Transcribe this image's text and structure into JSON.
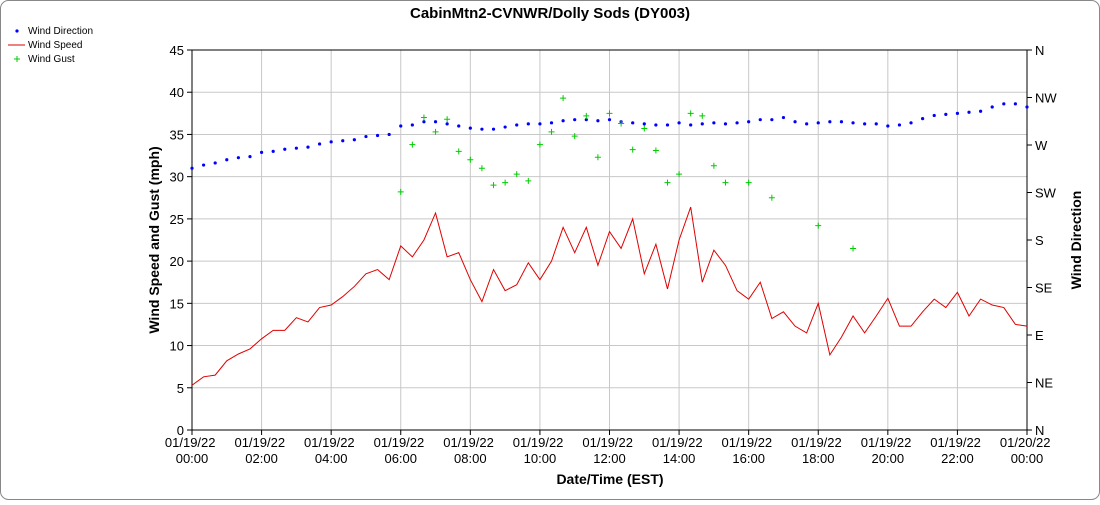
{
  "chart_data": {
    "type": "line",
    "title": "CabinMtn2-CVNWR/Dolly Sods (DY003)",
    "x_label": "Date/Time (EST)",
    "y_label": "Wind Speed and Gust (mph)",
    "y2_label": "Wind Direction",
    "grid": true,
    "legend": "top-left",
    "x": [
      "2022-01-19T00:00",
      "2022-01-19T00:20",
      "2022-01-19T00:40",
      "2022-01-19T01:00",
      "2022-01-19T01:20",
      "2022-01-19T01:40",
      "2022-01-19T02:00",
      "2022-01-19T02:20",
      "2022-01-19T02:40",
      "2022-01-19T03:00",
      "2022-01-19T03:20",
      "2022-01-19T03:40",
      "2022-01-19T04:00",
      "2022-01-19T04:20",
      "2022-01-19T04:40",
      "2022-01-19T05:00",
      "2022-01-19T05:20",
      "2022-01-19T05:40",
      "2022-01-19T06:00",
      "2022-01-19T06:20",
      "2022-01-19T06:40",
      "2022-01-19T07:00",
      "2022-01-19T07:20",
      "2022-01-19T07:40",
      "2022-01-19T08:00",
      "2022-01-19T08:20",
      "2022-01-19T08:40",
      "2022-01-19T09:00",
      "2022-01-19T09:20",
      "2022-01-19T09:40",
      "2022-01-19T10:00",
      "2022-01-19T10:20",
      "2022-01-19T10:40",
      "2022-01-19T11:00",
      "2022-01-19T11:20",
      "2022-01-19T11:40",
      "2022-01-19T12:00",
      "2022-01-19T12:20",
      "2022-01-19T12:40",
      "2022-01-19T13:00",
      "2022-01-19T13:20",
      "2022-01-19T13:40",
      "2022-01-19T14:00",
      "2022-01-19T14:20",
      "2022-01-19T14:40",
      "2022-01-19T15:00",
      "2022-01-19T15:20",
      "2022-01-19T15:40",
      "2022-01-19T16:00",
      "2022-01-19T16:20",
      "2022-01-19T16:40",
      "2022-01-19T17:00",
      "2022-01-19T17:20",
      "2022-01-19T17:40",
      "2022-01-19T18:00",
      "2022-01-19T18:20",
      "2022-01-19T18:40",
      "2022-01-19T19:00",
      "2022-01-19T19:20",
      "2022-01-19T19:40",
      "2022-01-19T20:00",
      "2022-01-19T20:20",
      "2022-01-19T20:40",
      "2022-01-19T21:00",
      "2022-01-19T21:20",
      "2022-01-19T21:40",
      "2022-01-19T22:00",
      "2022-01-19T22:20",
      "2022-01-19T22:40",
      "2022-01-19T23:00",
      "2022-01-19T23:20",
      "2022-01-19T23:40",
      "2022-01-20T00:00"
    ],
    "xlim": [
      "2022-01-19T00:00",
      "2022-01-20T00:00"
    ],
    "xticks": [
      {
        "value": "2022-01-19T00:00",
        "label": "01/19/22 00:00"
      },
      {
        "value": "2022-01-19T02:00",
        "label": "01/19/22 02:00"
      },
      {
        "value": "2022-01-19T04:00",
        "label": "01/19/22 04:00"
      },
      {
        "value": "2022-01-19T06:00",
        "label": "01/19/22 06:00"
      },
      {
        "value": "2022-01-19T08:00",
        "label": "01/19/22 08:00"
      },
      {
        "value": "2022-01-19T10:00",
        "label": "01/19/22 10:00"
      },
      {
        "value": "2022-01-19T12:00",
        "label": "01/19/22 12:00"
      },
      {
        "value": "2022-01-19T14:00",
        "label": "01/19/22 14:00"
      },
      {
        "value": "2022-01-19T16:00",
        "label": "01/19/22 16:00"
      },
      {
        "value": "2022-01-19T18:00",
        "label": "01/19/22 18:00"
      },
      {
        "value": "2022-01-19T20:00",
        "label": "01/19/22 20:00"
      },
      {
        "value": "2022-01-19T22:00",
        "label": "01/19/22 22:00"
      },
      {
        "value": "2022-01-20T00:00",
        "label": "01/20/22 00:00"
      }
    ],
    "ylim": [
      0,
      45
    ],
    "yticks": [
      0,
      5,
      10,
      15,
      20,
      25,
      30,
      35,
      40,
      45
    ],
    "y2lim": [
      0,
      360
    ],
    "y2ticks": [
      {
        "value": 0,
        "label": "N"
      },
      {
        "value": 45,
        "label": "NE"
      },
      {
        "value": 90,
        "label": "E"
      },
      {
        "value": 135,
        "label": "SE"
      },
      {
        "value": 180,
        "label": "S"
      },
      {
        "value": 225,
        "label": "SW"
      },
      {
        "value": 270,
        "label": "W"
      },
      {
        "value": 315,
        "label": "NW"
      },
      {
        "value": 360,
        "label": "N"
      }
    ],
    "series": [
      {
        "name": "Wind Direction",
        "color": "#0000ff",
        "marker": "dot",
        "axis": "y2",
        "values": [
          248,
          251,
          253,
          256,
          258,
          259,
          263,
          264,
          266,
          267,
          268,
          271,
          273,
          274,
          275,
          278,
          279,
          280,
          288,
          289,
          292,
          292,
          290,
          288,
          286,
          285,
          285,
          287,
          289,
          290,
          290,
          291,
          293,
          294,
          294,
          293,
          294,
          292,
          291,
          290,
          289,
          289,
          291,
          289,
          290,
          291,
          290,
          291,
          292,
          294,
          294,
          296,
          292,
          290,
          291,
          292,
          292,
          291,
          290,
          290,
          288,
          289,
          291,
          295,
          298,
          299,
          300,
          301,
          302,
          306,
          309,
          309,
          306
        ]
      },
      {
        "name": "Wind Speed",
        "color": "#e00000",
        "marker": "line",
        "values": [
          5.3,
          6.3,
          6.5,
          8.2,
          9.0,
          9.6,
          10.8,
          11.8,
          11.8,
          13.3,
          12.8,
          14.5,
          14.8,
          15.8,
          17.0,
          18.5,
          19.0,
          17.8,
          21.8,
          20.5,
          22.5,
          25.7,
          20.5,
          21.0,
          17.8,
          15.2,
          19.0,
          16.5,
          17.2,
          19.8,
          17.8,
          20.0,
          24.0,
          21.0,
          24.0,
          19.5,
          23.5,
          21.5,
          25.0,
          18.5,
          22.0,
          16.7,
          22.5,
          26.4,
          17.5,
          21.3,
          19.5,
          16.5,
          15.5,
          17.5,
          13.2,
          14.0,
          12.3,
          11.5,
          15.0,
          8.9,
          11.0,
          13.5,
          11.5,
          13.5,
          15.6,
          12.3,
          12.3,
          14.0,
          15.5,
          14.5,
          16.3,
          13.5,
          15.5,
          14.8,
          14.5,
          12.5,
          12.3
        ]
      },
      {
        "name": "Wind Gust",
        "color": "#00cc00",
        "marker": "plus",
        "values": [
          null,
          null,
          null,
          null,
          null,
          null,
          null,
          null,
          null,
          null,
          null,
          null,
          null,
          null,
          null,
          null,
          null,
          null,
          28.2,
          33.8,
          37.0,
          35.3,
          36.8,
          33.0,
          32.0,
          31.0,
          29.0,
          29.3,
          30.3,
          29.5,
          33.8,
          35.3,
          39.3,
          34.8,
          37.2,
          32.3,
          37.5,
          36.3,
          33.2,
          35.7,
          33.1,
          29.3,
          30.3,
          37.5,
          37.2,
          31.3,
          29.3,
          null,
          29.3,
          null,
          27.5,
          null,
          null,
          null,
          24.2,
          null,
          null,
          21.5,
          null,
          null,
          null,
          null,
          null,
          null,
          null,
          null,
          null,
          null,
          null,
          null,
          null,
          null,
          null
        ]
      }
    ]
  }
}
